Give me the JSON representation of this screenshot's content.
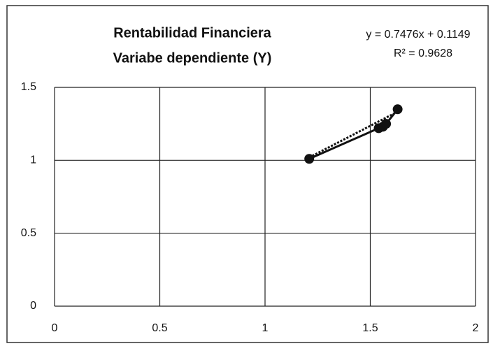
{
  "chart_data": {
    "type": "scatter",
    "title": [
      "Rentabilidad Financiera",
      "Variabe dependiente (Y)"
    ],
    "trendline": {
      "slope": 0.7476,
      "intercept": 0.1149,
      "label": "y = 0.7476x + 0.1149",
      "r2": 0.9628,
      "r2_label": "R² = 0.9628"
    },
    "series": [
      {
        "color": "#111111",
        "x": [
          1.21,
          1.54,
          1.56,
          1.575,
          1.63
        ],
        "values": [
          1.01,
          1.22,
          1.23,
          1.25,
          1.35
        ]
      }
    ],
    "xlim": [
      0,
      2
    ],
    "xticks": [
      0,
      0.5,
      1,
      1.5,
      2
    ],
    "ylim": [
      0,
      1.5
    ],
    "yticks": [
      0,
      0.5,
      1,
      1.5
    ],
    "grid": true
  }
}
